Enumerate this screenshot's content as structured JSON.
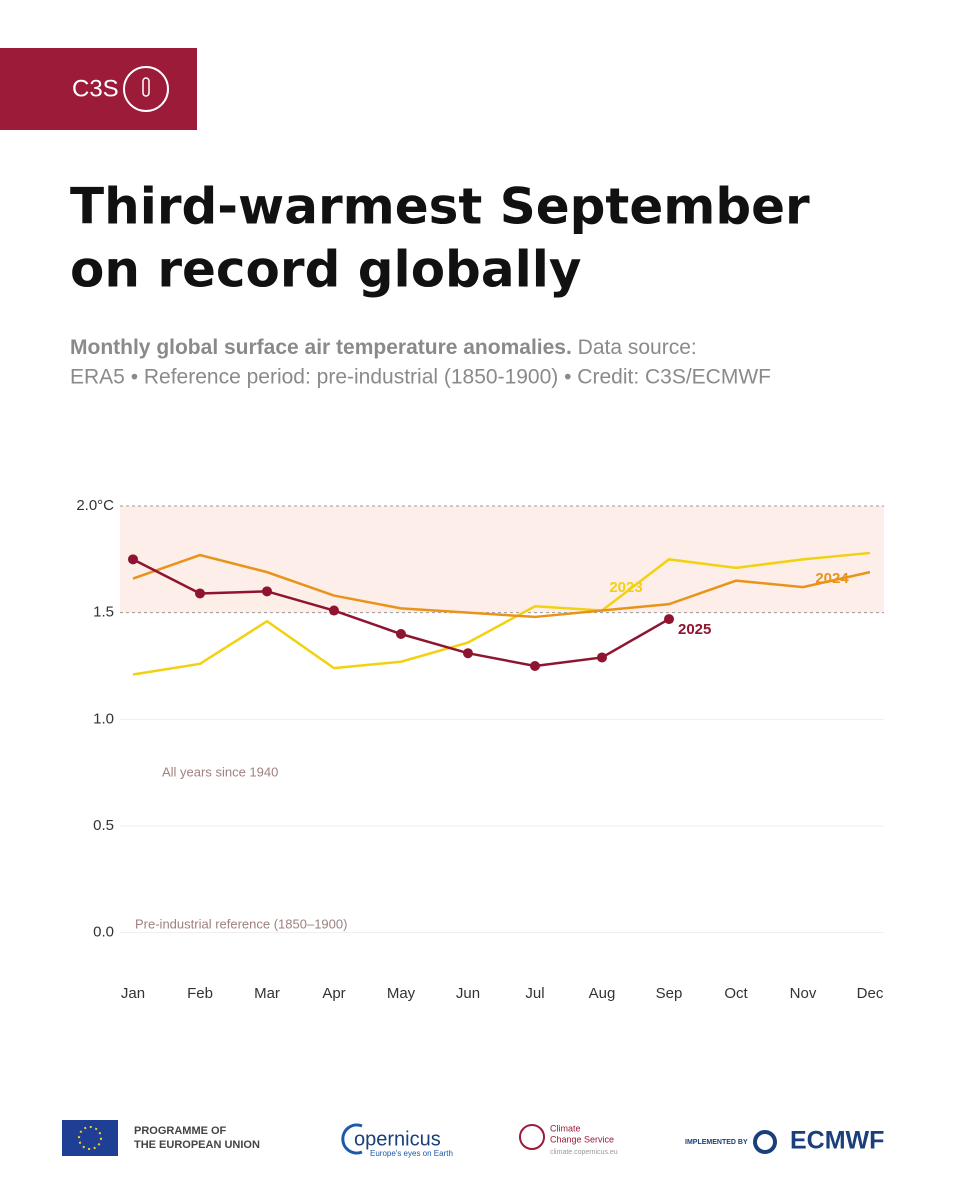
{
  "branding": {
    "logo": "C3S",
    "eu": [
      "PROGRAMME OF",
      "THE EUROPEAN UNION"
    ],
    "copernicus": "opernicus",
    "copernicus_tag": "Europe's eyes on Earth",
    "ccs": [
      "Climate",
      "Change Service"
    ],
    "ccs_url": "climate.copernicus.eu",
    "implemented": "IMPLEMENTED BY",
    "ecmwf": "ECMWF"
  },
  "chart_data": {
    "type": "line",
    "title": [
      "Third-warmest September",
      "on record globally"
    ],
    "subtitle_bold": "Monthly global surface air temperature anomalies.",
    "subtitle": [
      "Data source:",
      "ERA5 • Reference period: pre-industrial (1850-1900) • Credit: C3S/ECMWF"
    ],
    "annotations": [
      "All years since 1940",
      "Pre-industrial reference (1850–1900)"
    ],
    "categories": [
      "Jan",
      "Feb",
      "Mar",
      "Apr",
      "May",
      "Jun",
      "Jul",
      "Aug",
      "Sep",
      "Oct",
      "Nov",
      "Dec"
    ],
    "series": [
      {
        "name": "2023",
        "color": "#f2d10f",
        "values": [
          1.21,
          1.26,
          1.46,
          1.24,
          1.27,
          1.36,
          1.53,
          1.51,
          1.75,
          1.71,
          1.75,
          1.78
        ]
      },
      {
        "name": "2024",
        "color": "#e8941a",
        "values": [
          1.66,
          1.77,
          1.69,
          1.58,
          1.52,
          1.5,
          1.48,
          1.51,
          1.54,
          1.65,
          1.62,
          1.69
        ]
      },
      {
        "name": "2025",
        "color": "#8e1430",
        "values": [
          1.75,
          1.59,
          1.6,
          1.51,
          1.4,
          1.31,
          1.25,
          1.29,
          1.47,
          null,
          null,
          null
        ]
      }
    ],
    "ylim": [
      -0.1,
      2.0
    ],
    "yticks": [
      {
        "value": 0,
        "label": "0.0"
      },
      0.5,
      {
        "value": 1,
        "label": "1.0"
      },
      1.5,
      {
        "value": 2,
        "label": "2.0°C"
      }
    ],
    "band": [
      1.5,
      2.0
    ],
    "band_color": "#fdeeea",
    "grid": true
  }
}
